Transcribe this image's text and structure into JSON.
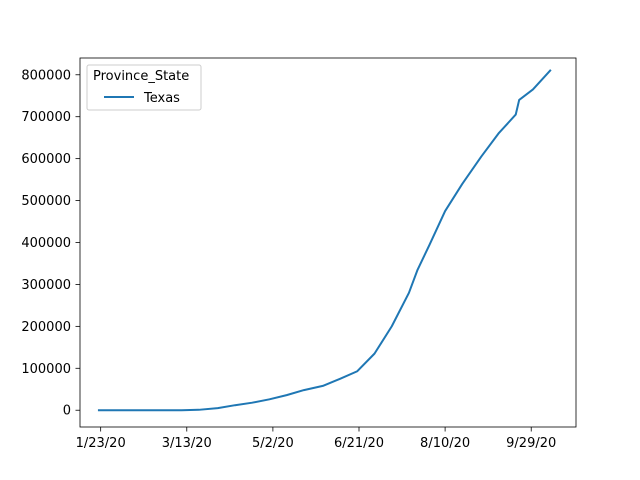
{
  "chart_data": {
    "type": "line",
    "title": "",
    "xlabel": "",
    "ylabel": "",
    "x_tick_labels": [
      "1/23/20",
      "3/13/20",
      "5/2/20",
      "6/21/20",
      "8/10/20",
      "9/29/20"
    ],
    "y_tick_labels": [
      "0",
      "100000",
      "200000",
      "300000",
      "400000",
      "500000",
      "600000",
      "700000",
      "800000"
    ],
    "ylim": [
      -40000,
      840000
    ],
    "xlim": [
      "1/11/20",
      "10/25/20"
    ],
    "grid": false,
    "legend": {
      "title": "Province_State",
      "placement": "top-left"
    },
    "series": [
      {
        "name": "Texas",
        "color": "#1f77b4",
        "points": [
          [
            "1/22/20",
            0
          ],
          [
            "2/15/20",
            0
          ],
          [
            "3/10/20",
            0
          ],
          [
            "3/20/20",
            1000
          ],
          [
            "3/31/20",
            5000
          ],
          [
            "4/10/20",
            12000
          ],
          [
            "4/20/20",
            18000
          ],
          [
            "4/30/20",
            26000
          ],
          [
            "5/10/20",
            36000
          ],
          [
            "5/20/20",
            48000
          ],
          [
            "5/31/20",
            58000
          ],
          [
            "6/10/20",
            75000
          ],
          [
            "6/20/20",
            93000
          ],
          [
            "6/30/20",
            135000
          ],
          [
            "7/10/20",
            200000
          ],
          [
            "7/20/20",
            280000
          ],
          [
            "7/25/20",
            335000
          ],
          [
            "8/1/20",
            395000
          ],
          [
            "8/10/20",
            475000
          ],
          [
            "8/20/20",
            540000
          ],
          [
            "8/31/20",
            605000
          ],
          [
            "9/10/20",
            660000
          ],
          [
            "9/20/20",
            705000
          ],
          [
            "9/22/20",
            740000
          ],
          [
            "9/30/20",
            765000
          ],
          [
            "10/10/20",
            810000
          ]
        ]
      }
    ]
  }
}
